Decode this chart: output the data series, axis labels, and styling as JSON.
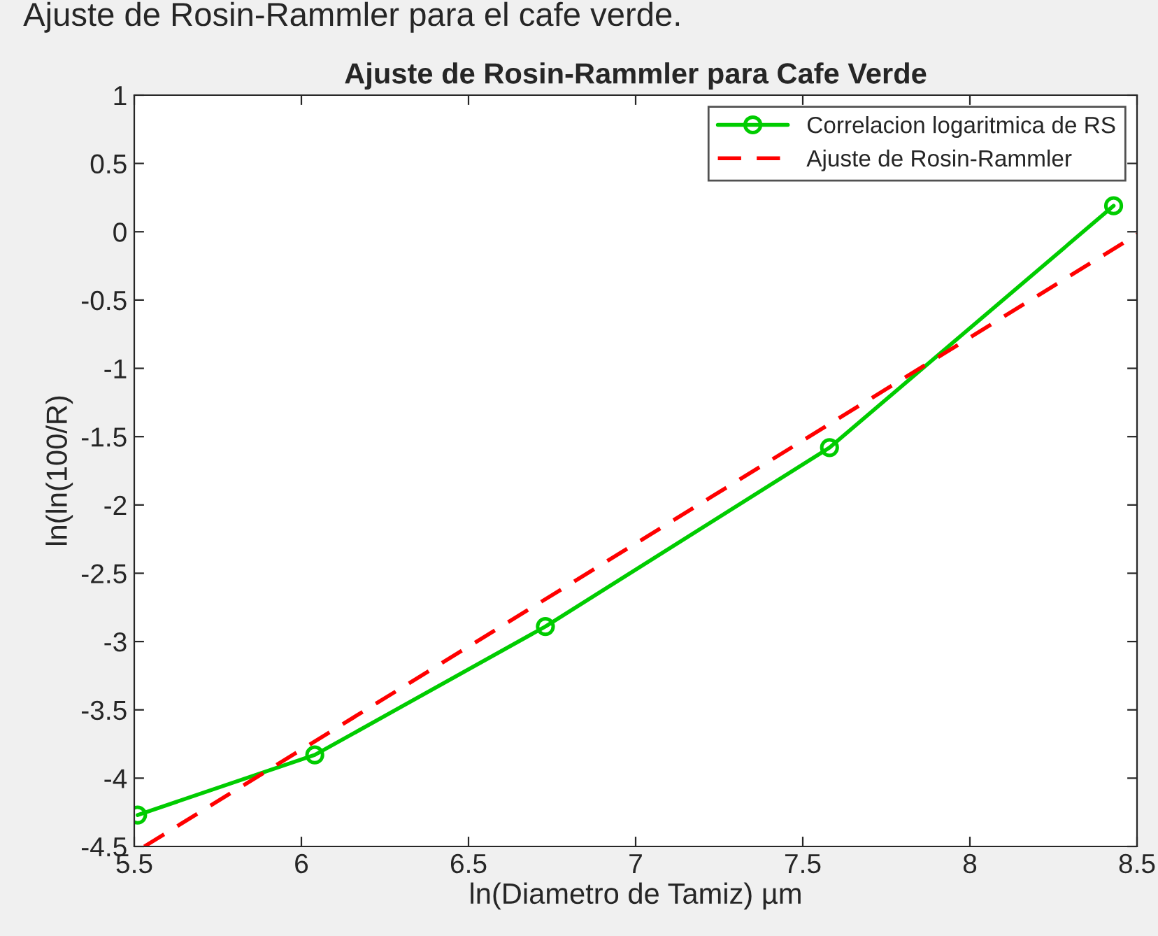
{
  "chart_data": {
    "type": "line",
    "title": "Ajuste de Rosin-Rammler para Cafe Verde",
    "xlabel": "ln(Diametro de Tamiz) µm",
    "ylabel": "ln(ln(100/R)",
    "annotations": [
      "Ajuste de Rosin-Rammler para el cafe verde."
    ],
    "series": [
      {
        "name": "Correlacion logaritmica de RS",
        "color": "#00cc00",
        "x": [
          5.51,
          6.04,
          6.73,
          7.58,
          8.43
        ],
        "values": [
          -4.27,
          -3.83,
          -2.89,
          -1.58,
          0.19
        ],
        "marker": "circle",
        "line_style": "solid"
      },
      {
        "name": "Ajuste de Rosin-Rammler",
        "color": "#ff0000",
        "type": "line",
        "x": [
          5.53,
          8.5
        ],
        "values": [
          -4.5,
          -0.02
        ],
        "marker": "none",
        "line_style": "dashed"
      }
    ],
    "xlim": [
      5.5,
      8.5
    ],
    "xticks": [
      5.5,
      6,
      6.5,
      7,
      7.5,
      8,
      8.5
    ],
    "ylim": [
      -4.5,
      1
    ],
    "yticks": [
      -4.5,
      -4,
      -3.5,
      -3,
      -2.5,
      -2,
      -1.5,
      -1,
      -0.5,
      0,
      0.5,
      1
    ],
    "grid": false,
    "legend": "top right"
  }
}
